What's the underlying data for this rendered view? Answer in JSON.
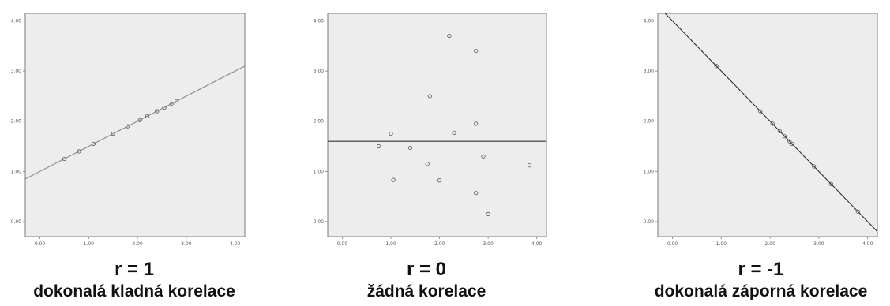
{
  "chart_data": [
    {
      "type": "scatter",
      "r_label": "r = 1",
      "caption": "dokonalá kladná korelace",
      "x_ticks": [
        "0.00",
        "1.00",
        "2.00",
        "3.00",
        "4.00"
      ],
      "y_ticks": [
        "0.00",
        "1.00",
        "2.00",
        "3.00",
        "4.00"
      ],
      "xlim": [
        -0.3,
        4.2
      ],
      "ylim": [
        -0.3,
        4.15
      ],
      "fit_line": {
        "slope": 0.5,
        "intercept": 1.0
      },
      "points": [
        {
          "x": 0.5,
          "y": 1.25
        },
        {
          "x": 0.8,
          "y": 1.4
        },
        {
          "x": 1.1,
          "y": 1.55
        },
        {
          "x": 1.5,
          "y": 1.75
        },
        {
          "x": 1.8,
          "y": 1.9
        },
        {
          "x": 2.05,
          "y": 2.02
        },
        {
          "x": 2.2,
          "y": 2.1
        },
        {
          "x": 2.4,
          "y": 2.2
        },
        {
          "x": 2.55,
          "y": 2.27
        },
        {
          "x": 2.7,
          "y": 2.35
        },
        {
          "x": 2.8,
          "y": 2.4
        }
      ]
    },
    {
      "type": "scatter",
      "r_label": "r = 0",
      "caption": "žádná korelace",
      "x_ticks": [
        "0.00",
        "1.00",
        "2.00",
        "3.00",
        "4.00"
      ],
      "y_ticks": [
        "0.00",
        "1.00",
        "2.00",
        "3.00",
        "4.00"
      ],
      "xlim": [
        -0.3,
        4.2
      ],
      "ylim": [
        -0.3,
        4.15
      ],
      "fit_line": {
        "slope": 0,
        "intercept": 1.6
      },
      "points": [
        {
          "x": 2.2,
          "y": 3.7
        },
        {
          "x": 2.75,
          "y": 3.4
        },
        {
          "x": 1.8,
          "y": 2.5
        },
        {
          "x": 2.75,
          "y": 1.95
        },
        {
          "x": 1.0,
          "y": 1.75
        },
        {
          "x": 2.3,
          "y": 1.77
        },
        {
          "x": 0.75,
          "y": 1.5
        },
        {
          "x": 1.4,
          "y": 1.47
        },
        {
          "x": 2.9,
          "y": 1.3
        },
        {
          "x": 1.75,
          "y": 1.15
        },
        {
          "x": 3.85,
          "y": 1.12
        },
        {
          "x": 1.05,
          "y": 0.83
        },
        {
          "x": 2.0,
          "y": 0.82
        },
        {
          "x": 2.75,
          "y": 0.57
        },
        {
          "x": 3.0,
          "y": 0.15
        }
      ]
    },
    {
      "type": "scatter",
      "r_label": "r = -1",
      "caption": "dokonalá záporná korelace",
      "x_ticks": [
        "0.00",
        "1.00",
        "2.00",
        "3.00",
        "4.00"
      ],
      "y_ticks": [
        "0.00",
        "1.00",
        "2.00",
        "3.00",
        "4.00"
      ],
      "xlim": [
        -0.3,
        4.2
      ],
      "ylim": [
        -0.3,
        4.15
      ],
      "fit_line": {
        "slope": -1,
        "intercept": 4.0
      },
      "points": [
        {
          "x": 0.9,
          "y": 3.1
        },
        {
          "x": 1.8,
          "y": 2.2
        },
        {
          "x": 2.05,
          "y": 1.95
        },
        {
          "x": 2.2,
          "y": 1.8
        },
        {
          "x": 2.3,
          "y": 1.7
        },
        {
          "x": 2.4,
          "y": 1.6
        },
        {
          "x": 2.45,
          "y": 1.55
        },
        {
          "x": 2.9,
          "y": 1.1
        },
        {
          "x": 3.25,
          "y": 0.75
        },
        {
          "x": 3.8,
          "y": 0.2
        }
      ]
    }
  ],
  "colors": {
    "plot_bg": "#ededed",
    "frame": "#7a7a7a",
    "point_stroke": "#555555",
    "line_positive": "#909090",
    "line_zero": "#333333",
    "line_negative": "#222222",
    "caption_text": "#111111"
  }
}
